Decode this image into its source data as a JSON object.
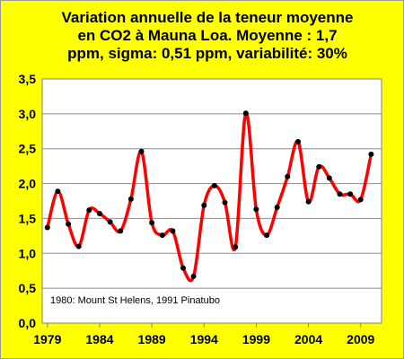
{
  "chart_data": {
    "type": "line",
    "title_lines": [
      "Variation annuelle de la teneur moyenne",
      "en CO2 à Mauna  Loa. Moyenne : 1,7",
      "ppm, sigma: 0,51 ppm, variabilité: 30%"
    ],
    "xlabel": "",
    "ylabel": "",
    "x_ticks": [
      "1979",
      "1984",
      "1989",
      "1994",
      "1999",
      "2004",
      "2009"
    ],
    "y_ticks": [
      "0,0",
      "0,5",
      "1,0",
      "1,5",
      "2,0",
      "2,5",
      "3,0",
      "3,5"
    ],
    "xlim": [
      1978.5,
      2011
    ],
    "ylim": [
      0,
      3.5
    ],
    "grid": "horizontal",
    "annotation": "1980: Mount St Helens, 1991 Pinatubo",
    "line_color": "#ff0000",
    "marker_color": "#000000",
    "series": [
      {
        "x": [
          1979,
          1980,
          1981,
          1982,
          1983,
          1984,
          1985,
          1986,
          1987,
          1988,
          1989,
          1990,
          1991,
          1992,
          1993,
          1994,
          1995,
          1996,
          1997,
          1998,
          1999,
          2000,
          2001,
          2002,
          2003,
          2004,
          2005,
          2006,
          2007,
          2008,
          2009,
          2010
        ],
        "values": [
          1.37,
          1.89,
          1.42,
          1.1,
          1.62,
          1.57,
          1.45,
          1.32,
          1.78,
          2.46,
          1.44,
          1.26,
          1.32,
          0.79,
          0.67,
          1.69,
          1.97,
          1.73,
          1.09,
          3.01,
          1.63,
          1.26,
          1.66,
          2.1,
          2.6,
          1.74,
          2.24,
          2.08,
          1.85,
          1.85,
          1.77,
          2.42
        ]
      }
    ]
  }
}
